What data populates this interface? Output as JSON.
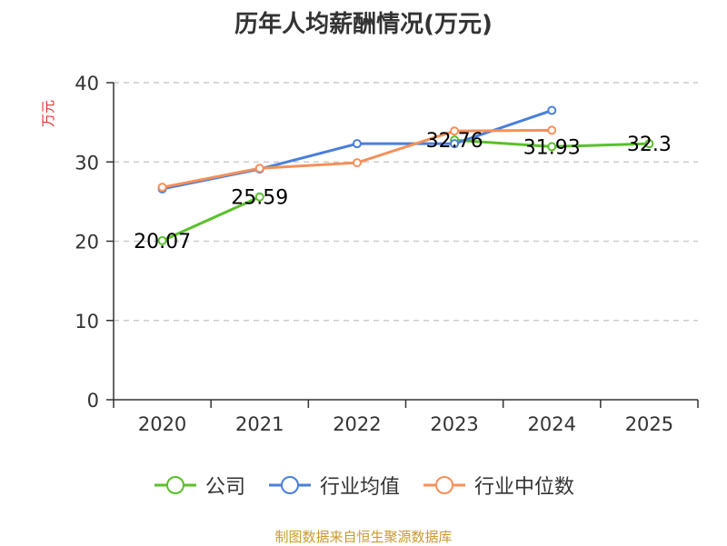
{
  "chart_data": {
    "type": "line",
    "title": "历年人均薪酬情况(万元)",
    "ylabel": "万元",
    "xlabel": "",
    "categories": [
      "2020",
      "2021",
      "2022",
      "2023",
      "2024",
      "2025"
    ],
    "ylim": [
      0,
      40
    ],
    "yticks": [
      0,
      10,
      20,
      30,
      40
    ],
    "grid": "horizontal-dashed",
    "legend_position": "bottom",
    "series": [
      {
        "name": "公司",
        "color": "#5ac02a",
        "values": [
          20.07,
          25.59,
          null,
          32.76,
          31.93,
          32.3
        ],
        "labels": [
          "20.07",
          "25.59",
          null,
          "32.76",
          "31.93",
          "32.3"
        ]
      },
      {
        "name": "行业均值",
        "color": "#4a7fdb",
        "values": [
          26.6,
          29.1,
          32.3,
          32.3,
          36.5,
          null
        ]
      },
      {
        "name": "行业中位数",
        "color": "#f5905a",
        "values": [
          26.8,
          29.2,
          29.9,
          33.9,
          34.0,
          null
        ]
      }
    ]
  },
  "source": "制图数据来自恒生聚源数据库"
}
